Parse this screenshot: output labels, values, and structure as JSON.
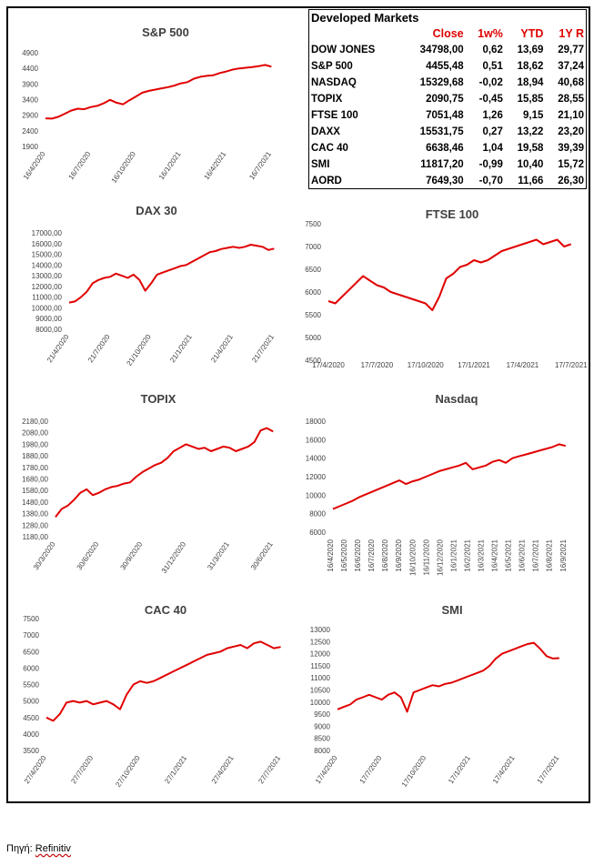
{
  "table": {
    "title": "Developed Markets",
    "headers": [
      "",
      "Close",
      "1w%",
      "YTD",
      "1Y R"
    ],
    "rows": [
      [
        "DOW JONES",
        "34798,00",
        "0,62",
        "13,69",
        "29,77"
      ],
      [
        "S&P 500",
        "4455,48",
        "0,51",
        "18,62",
        "37,24"
      ],
      [
        "NASDAQ",
        "15329,68",
        "-0,02",
        "18,94",
        "40,68"
      ],
      [
        "TOPIX",
        "2090,75",
        "-0,45",
        "15,85",
        "28,55"
      ],
      [
        "FTSE 100",
        "7051,48",
        "1,26",
        "9,15",
        "21,10"
      ],
      [
        "DAXX",
        "15531,75",
        "0,27",
        "13,22",
        "23,20"
      ],
      [
        "CAC 40",
        "6638,46",
        "1,04",
        "19,58",
        "39,39"
      ],
      [
        "SMI",
        "11817,20",
        "-0,99",
        "10,40",
        "15,72"
      ],
      [
        "AORD",
        "7649,30",
        "-0,70",
        "11,66",
        "26,30"
      ]
    ]
  },
  "source": {
    "label": "Πηγή: ",
    "name": "Refinitiv"
  },
  "chart_data": [
    {
      "id": "sp500",
      "type": "line",
      "title": "S&P 500",
      "color": "#e00000",
      "ylim": [
        1900,
        4900
      ],
      "yticks": [
        "1900",
        "2400",
        "2900",
        "3400",
        "3900",
        "4400",
        "4900"
      ],
      "xticks": [
        "16/4/2020",
        "16/7/2020",
        "16/10/2020",
        "16/1/2021",
        "16/4/2021",
        "16/7/2021"
      ],
      "series": [
        {
          "values": [
            2800,
            2790,
            2850,
            2950,
            3050,
            3110,
            3090,
            3160,
            3200,
            3280,
            3390,
            3300,
            3250,
            3380,
            3500,
            3620,
            3680,
            3720,
            3760,
            3800,
            3850,
            3920,
            3960,
            4070,
            4130,
            4160,
            4180,
            4250,
            4300,
            4360,
            4400,
            4420,
            4440,
            4470,
            4510,
            4455
          ]
        }
      ]
    },
    {
      "id": "dax",
      "type": "line",
      "title": "DAX 30",
      "color": "#e00000",
      "ylim": [
        8000,
        17000
      ],
      "yticks": [
        "8000,00",
        "9000,00",
        "10000,00",
        "11000,00",
        "12000,00",
        "13000,00",
        "14000,00",
        "15000,00",
        "16000,00",
        "17000,00"
      ],
      "xticks": [
        "21/4/2020",
        "21/7/2020",
        "21/10/2020",
        "21/1/2021",
        "21/4/2021",
        "21/7/2021"
      ],
      "series": [
        {
          "values": [
            10500,
            10600,
            11000,
            11500,
            12300,
            12600,
            12800,
            12900,
            13200,
            13000,
            12800,
            13100,
            12600,
            11600,
            12300,
            13100,
            13300,
            13500,
            13700,
            13900,
            14000,
            14300,
            14600,
            14900,
            15200,
            15300,
            15500,
            15600,
            15700,
            15600,
            15700,
            15900,
            15800,
            15700,
            15400,
            15531
          ]
        }
      ]
    },
    {
      "id": "ftse",
      "type": "line",
      "title": "FTSE 100",
      "color": "#e00000",
      "ylim": [
        4500,
        7500
      ],
      "yticks": [
        "4500",
        "5000",
        "5500",
        "6000",
        "6500",
        "7000",
        "7500"
      ],
      "xticks": [
        "17/4/2020",
        "17/7/2020",
        "17/10/2020",
        "17/1/2021",
        "17/4/2021",
        "17/7/2021"
      ],
      "series": [
        {
          "values": [
            5800,
            5750,
            5900,
            6050,
            6200,
            6350,
            6250,
            6150,
            6100,
            6000,
            5950,
            5900,
            5850,
            5800,
            5750,
            5600,
            5900,
            6300,
            6400,
            6550,
            6600,
            6700,
            6650,
            6700,
            6800,
            6900,
            6950,
            7000,
            7050,
            7100,
            7150,
            7050,
            7100,
            7150,
            7000,
            7051
          ]
        }
      ]
    },
    {
      "id": "topix",
      "type": "line",
      "title": "TOPIX",
      "color": "#e00000",
      "ylim": [
        1180,
        2180
      ],
      "yticks": [
        "1180,00",
        "1280,00",
        "1380,00",
        "1480,00",
        "1580,00",
        "1680,00",
        "1780,00",
        "1880,00",
        "1980,00",
        "2080,00",
        "2180,00"
      ],
      "xticks": [
        "30/3/2020",
        "30/6/2020",
        "30/9/2020",
        "31/12/2020",
        "31/3/2021",
        "30/6/2021"
      ],
      "series": [
        {
          "values": [
            1350,
            1420,
            1450,
            1500,
            1560,
            1590,
            1540,
            1560,
            1590,
            1610,
            1620,
            1640,
            1650,
            1700,
            1740,
            1770,
            1800,
            1820,
            1860,
            1920,
            1950,
            1980,
            1960,
            1940,
            1950,
            1920,
            1940,
            1960,
            1950,
            1920,
            1940,
            1960,
            2000,
            2100,
            2120,
            2090
          ]
        }
      ]
    },
    {
      "id": "nasdaq",
      "type": "line",
      "title": "Nasdaq",
      "color": "#e00000",
      "ylim": [
        6000,
        18000
      ],
      "yticks": [
        "6000",
        "8000",
        "10000",
        "12000",
        "14000",
        "16000",
        "18000"
      ],
      "xticks": [
        "16/4/2020",
        "16/5/2020",
        "16/6/2020",
        "16/7/2020",
        "16/8/2020",
        "16/9/2020",
        "16/10/2020",
        "16/11/2020",
        "16/12/2020",
        "16/1/2021",
        "16/2/2021",
        "16/3/2021",
        "16/4/2021",
        "16/5/2021",
        "16/6/2021",
        "16/7/2021",
        "16/8/2021",
        "16/9/2021"
      ],
      "series": [
        {
          "values": [
            8500,
            8800,
            9100,
            9400,
            9800,
            10100,
            10400,
            10700,
            11000,
            11300,
            11600,
            11200,
            11500,
            11700,
            12000,
            12300,
            12600,
            12800,
            13000,
            13200,
            13500,
            12800,
            13000,
            13200,
            13600,
            13800,
            13500,
            14000,
            14200,
            14400,
            14600,
            14800,
            15000,
            15200,
            15500,
            15329
          ]
        }
      ]
    },
    {
      "id": "cac",
      "type": "line",
      "title": "CAC 40",
      "color": "#e00000",
      "ylim": [
        3500,
        7500
      ],
      "yticks": [
        "3500",
        "4000",
        "4500",
        "5000",
        "5500",
        "6000",
        "6500",
        "7000",
        "7500"
      ],
      "xticks": [
        "27/4/2020",
        "27/7/2020",
        "27/10/2020",
        "27/1/2021",
        "27/4/2021",
        "27/7/2021"
      ],
      "series": [
        {
          "values": [
            4500,
            4400,
            4600,
            4950,
            5000,
            4950,
            5000,
            4900,
            4950,
            5000,
            4900,
            4750,
            5200,
            5500,
            5600,
            5550,
            5600,
            5700,
            5800,
            5900,
            6000,
            6100,
            6200,
            6300,
            6400,
            6450,
            6500,
            6600,
            6650,
            6700,
            6600,
            6750,
            6800,
            6700,
            6600,
            6638
          ]
        }
      ]
    },
    {
      "id": "smi",
      "type": "line",
      "title": "SMI",
      "color": "#e00000",
      "ylim": [
        8000,
        13000
      ],
      "yticks": [
        "8000",
        "8500",
        "9000",
        "9500",
        "10000",
        "10500",
        "11000",
        "11500",
        "12000",
        "12500",
        "13000"
      ],
      "xticks": [
        "17/4/2020",
        "17/7/2020",
        "17/10/2020",
        "17/1/2021",
        "17/4/2021",
        "17/7/2021"
      ],
      "series": [
        {
          "values": [
            9700,
            9800,
            9900,
            10100,
            10200,
            10300,
            10200,
            10100,
            10300,
            10400,
            10200,
            9600,
            10400,
            10500,
            10600,
            10700,
            10650,
            10750,
            10800,
            10900,
            11000,
            11100,
            11200,
            11300,
            11500,
            11800,
            12000,
            12100,
            12200,
            12300,
            12400,
            12450,
            12200,
            11900,
            11800,
            11817
          ]
        }
      ]
    }
  ]
}
